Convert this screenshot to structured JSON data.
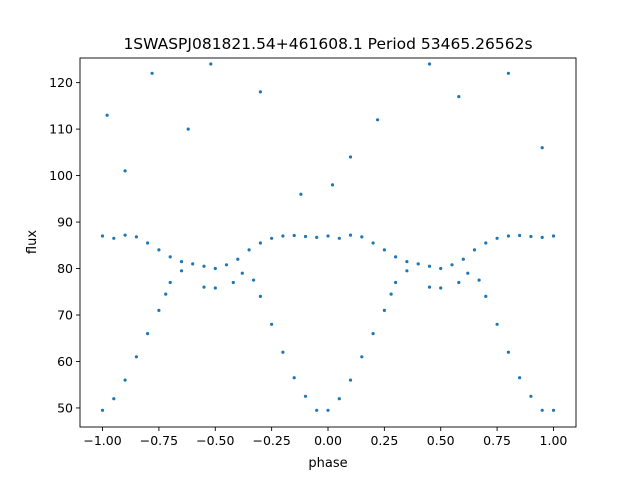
{
  "chart_data": {
    "type": "scatter",
    "title": "1SWASPJ081821.54+461608.1 Period 53465.26562s",
    "xlabel": "phase",
    "ylabel": "flux",
    "xlim": [
      -1.1,
      1.1
    ],
    "ylim": [
      45.9,
      125.3
    ],
    "x_ticks": [
      -1.0,
      -0.75,
      -0.5,
      -0.25,
      0.0,
      0.25,
      0.5,
      0.75,
      1.0
    ],
    "x_tick_labels": [
      "−1.00",
      "−0.75",
      "−0.50",
      "−0.25",
      "0.00",
      "0.25",
      "0.50",
      "0.75",
      "1.00"
    ],
    "y_ticks": [
      50,
      60,
      70,
      80,
      90,
      100,
      110,
      120
    ],
    "y_tick_labels": [
      "50",
      "60",
      "70",
      "80",
      "90",
      "100",
      "110",
      "120"
    ],
    "grid": false,
    "marker_color": "#1f77b4",
    "series": [
      {
        "points": [
          [
            -1.0,
            87.0
          ],
          [
            -0.95,
            86.5
          ],
          [
            -0.9,
            87.2
          ],
          [
            -0.85,
            86.8
          ],
          [
            -0.8,
            85.5
          ],
          [
            -0.75,
            84.0
          ],
          [
            -0.7,
            82.5
          ],
          [
            -0.65,
            81.5
          ],
          [
            -0.6,
            81.0
          ],
          [
            -0.55,
            80.5
          ],
          [
            -0.5,
            80.0
          ],
          [
            -0.45,
            80.8
          ],
          [
            -0.4,
            82.0
          ],
          [
            -0.35,
            84.0
          ],
          [
            -0.3,
            85.5
          ],
          [
            -0.25,
            86.5
          ],
          [
            -0.2,
            87.0
          ],
          [
            -0.15,
            87.1
          ],
          [
            -0.1,
            86.9
          ],
          [
            -0.05,
            86.7
          ],
          [
            0.0,
            87.0
          ],
          [
            0.05,
            86.5
          ],
          [
            0.1,
            87.2
          ],
          [
            0.15,
            86.8
          ],
          [
            0.2,
            85.5
          ],
          [
            0.25,
            84.0
          ],
          [
            0.3,
            82.5
          ],
          [
            0.35,
            81.5
          ],
          [
            0.4,
            81.0
          ],
          [
            0.45,
            80.5
          ],
          [
            0.5,
            80.0
          ],
          [
            0.55,
            80.8
          ],
          [
            0.6,
            82.0
          ],
          [
            0.65,
            84.0
          ],
          [
            0.7,
            85.5
          ],
          [
            0.75,
            86.5
          ],
          [
            0.8,
            87.0
          ],
          [
            0.85,
            87.1
          ],
          [
            0.9,
            86.9
          ],
          [
            0.95,
            86.7
          ],
          [
            1.0,
            87.0
          ],
          [
            -1.0,
            49.5
          ],
          [
            -0.95,
            52.0
          ],
          [
            -0.9,
            56.0
          ],
          [
            -0.85,
            61.0
          ],
          [
            -0.8,
            66.0
          ],
          [
            -0.75,
            71.0
          ],
          [
            -0.72,
            74.5
          ],
          [
            -0.7,
            77.0
          ],
          [
            -0.65,
            79.5
          ],
          [
            -0.42,
            77.0
          ],
          [
            -0.38,
            79.0
          ],
          [
            -0.33,
            77.5
          ],
          [
            -0.3,
            74.0
          ],
          [
            -0.25,
            68.0
          ],
          [
            -0.2,
            62.0
          ],
          [
            -0.15,
            56.5
          ],
          [
            -0.1,
            52.5
          ],
          [
            -0.05,
            49.5
          ],
          [
            0.0,
            49.5
          ],
          [
            0.05,
            52.0
          ],
          [
            0.1,
            56.0
          ],
          [
            0.15,
            61.0
          ],
          [
            0.2,
            66.0
          ],
          [
            0.25,
            71.0
          ],
          [
            0.28,
            74.5
          ],
          [
            0.3,
            77.0
          ],
          [
            0.35,
            79.5
          ],
          [
            0.58,
            77.0
          ],
          [
            0.62,
            79.0
          ],
          [
            0.67,
            77.5
          ],
          [
            0.7,
            74.0
          ],
          [
            0.75,
            68.0
          ],
          [
            0.8,
            62.0
          ],
          [
            0.85,
            56.5
          ],
          [
            0.9,
            52.5
          ],
          [
            0.95,
            49.5
          ],
          [
            1.0,
            49.5
          ],
          [
            -0.55,
            76.0
          ],
          [
            -0.5,
            75.8
          ],
          [
            0.45,
            76.0
          ],
          [
            0.5,
            75.8
          ],
          [
            -0.9,
            101.0
          ],
          [
            -0.78,
            122.0
          ],
          [
            -0.62,
            110.0
          ],
          [
            -0.52,
            124.0
          ],
          [
            -0.3,
            118.0
          ],
          [
            -0.12,
            96.0
          ],
          [
            0.1,
            104.0
          ],
          [
            0.22,
            112.0
          ],
          [
            0.45,
            124.0
          ],
          [
            0.58,
            117.0
          ],
          [
            0.8,
            122.0
          ],
          [
            0.95,
            106.0
          ],
          [
            -0.98,
            113.0
          ],
          [
            0.02,
            98.0
          ]
        ]
      }
    ]
  }
}
